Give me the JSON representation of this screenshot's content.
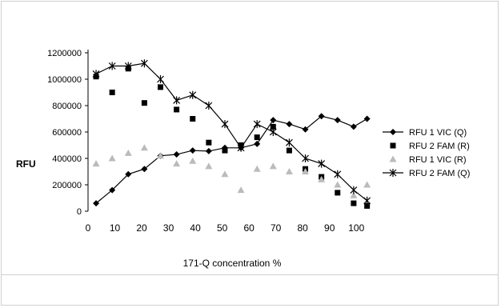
{
  "chart_data": {
    "type": "line",
    "title": "",
    "xlabel": "171-Q concentration %",
    "ylabel": "RFU",
    "xlim": [
      0,
      105
    ],
    "ylim": [
      0,
      1200000
    ],
    "xticks": [
      0,
      10,
      20,
      30,
      40,
      50,
      60,
      70,
      80,
      90,
      100
    ],
    "yticks": [
      0,
      200000,
      400000,
      600000,
      800000,
      1000000,
      1200000
    ],
    "xtick_labels": [
      "0",
      "10",
      "20",
      "30",
      "40",
      "50",
      "60",
      "70",
      "80",
      "90",
      "100"
    ],
    "ytick_labels": [
      "0",
      "200000",
      "400000",
      "600000",
      "800000",
      "1000000",
      "1200000"
    ],
    "legend_position": "right",
    "series": [
      {
        "name": "RFU 1 VIC (Q)",
        "color": "#000000",
        "marker": "diamond",
        "line": true,
        "x": [
          3,
          9,
          15,
          21,
          27,
          33,
          39,
          45,
          51,
          57,
          63,
          69,
          75,
          81,
          87,
          93,
          99,
          104
        ],
        "y": [
          60000,
          160000,
          280000,
          320000,
          420000,
          430000,
          460000,
          455000,
          480000,
          480000,
          510000,
          690000,
          660000,
          620000,
          720000,
          690000,
          640000,
          700000
        ]
      },
      {
        "name": "RFU 2 FAM (R)",
        "color": "#000000",
        "marker": "square",
        "line": false,
        "x": [
          3,
          9,
          15,
          21,
          27,
          33,
          39,
          45,
          51,
          57,
          63,
          69,
          75,
          81,
          87,
          93,
          99,
          104
        ],
        "y": [
          1020000,
          900000,
          1080000,
          820000,
          940000,
          770000,
          700000,
          520000,
          460000,
          500000,
          560000,
          640000,
          460000,
          320000,
          260000,
          140000,
          60000,
          40000
        ]
      },
      {
        "name": "RFU 1 VIC (R)",
        "color": "#bbbbbb",
        "marker": "triangle",
        "line": false,
        "x": [
          3,
          9,
          15,
          21,
          27,
          33,
          39,
          45,
          51,
          57,
          63,
          69,
          75,
          81,
          87,
          93,
          99,
          104
        ],
        "y": [
          360000,
          400000,
          440000,
          480000,
          420000,
          360000,
          380000,
          340000,
          280000,
          160000,
          320000,
          340000,
          300000,
          300000,
          240000,
          200000,
          120000,
          200000
        ]
      },
      {
        "name": "RFU 2 FAM (Q)",
        "color": "#000000",
        "marker": "star",
        "line": true,
        "x": [
          3,
          9,
          15,
          21,
          27,
          33,
          39,
          45,
          51,
          57,
          63,
          69,
          75,
          81,
          87,
          93,
          99,
          104
        ],
        "y": [
          1040000,
          1100000,
          1100000,
          1120000,
          1000000,
          840000,
          880000,
          800000,
          660000,
          480000,
          660000,
          600000,
          520000,
          400000,
          360000,
          280000,
          160000,
          80000
        ]
      }
    ]
  }
}
